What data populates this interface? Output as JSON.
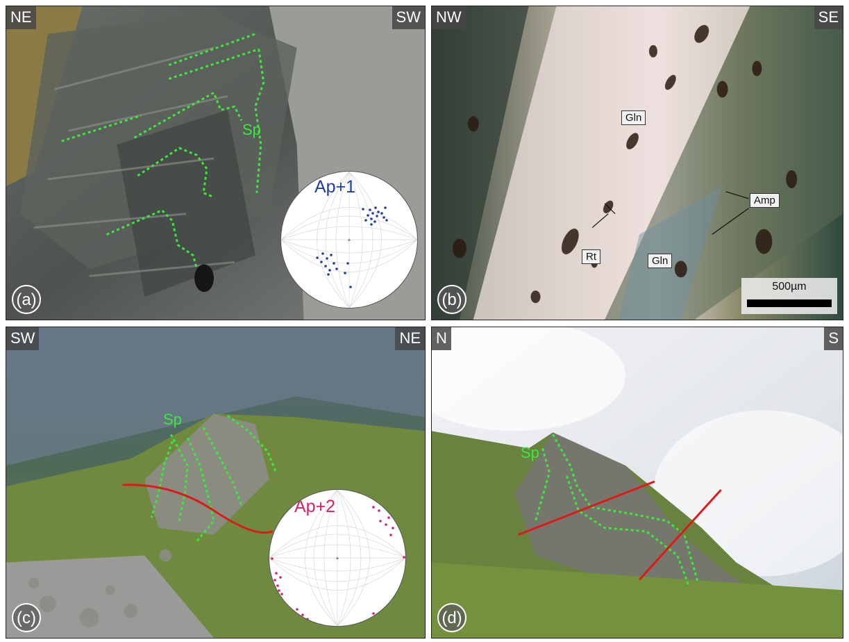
{
  "panels": {
    "a": {
      "letter": "(a)",
      "dir_left": "NE",
      "dir_right": "SW",
      "fold_label": "Sp",
      "stereonet_label": "Ap+1",
      "stereonet_color": "#1f3f99"
    },
    "b": {
      "letter": "(b)",
      "dir_left": "NW",
      "dir_right": "SE",
      "minerals": [
        "Gln",
        "Amp",
        "Rt",
        "Gln"
      ],
      "scale_label": "500µm"
    },
    "c": {
      "letter": "(c)",
      "dir_left": "SW",
      "dir_right": "NE",
      "fold_label": "Sp",
      "stereonet_label": "Ap+2",
      "stereonet_color": "#d6206b"
    },
    "d": {
      "letter": "(d)",
      "dir_left": "N",
      "dir_right": "S",
      "fold_label": "Sp"
    }
  },
  "colors": {
    "fold_trace": "#3ee63e",
    "axial_plane": "#dd1a1a"
  }
}
